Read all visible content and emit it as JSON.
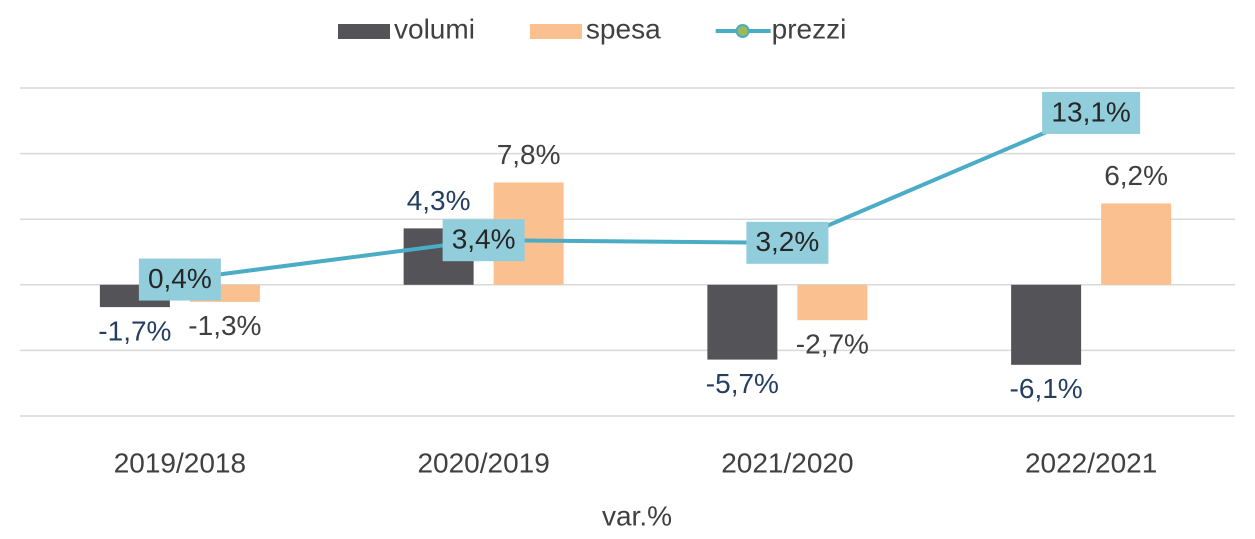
{
  "chart_data": {
    "type": "bar_line",
    "x_label": "var.%",
    "categories": [
      "2019/2018",
      "2020/2019",
      "2021/2020",
      "2022/2021"
    ],
    "series": [
      {
        "name": "volumi",
        "type": "bar",
        "color": "#545458",
        "label_color": "#243f60",
        "values": [
          -1.7,
          4.3,
          -5.7,
          -6.1
        ],
        "value_labels": [
          "-1,7%",
          "4,3%",
          "-5,7%",
          "-6,1%"
        ]
      },
      {
        "name": "spesa",
        "type": "bar",
        "color": "#fac090",
        "label_color": "#404040",
        "values": [
          -1.3,
          7.8,
          -2.7,
          6.2
        ],
        "value_labels": [
          "-1,3%",
          "7,8%",
          "-2,7%",
          "6,2%"
        ]
      },
      {
        "name": "prezzi",
        "type": "line",
        "color": "#4bacc6",
        "label_box_color": "#92cddc",
        "values": [
          0.4,
          3.4,
          3.2,
          13.1
        ],
        "value_labels": [
          "0,4%",
          "3,4%",
          "3,2%",
          "13,1%"
        ]
      }
    ],
    "ylim": [
      -10,
      15
    ],
    "yticks": [
      -10,
      -5,
      0,
      5,
      10,
      15
    ],
    "grid": true,
    "legend": "top"
  }
}
